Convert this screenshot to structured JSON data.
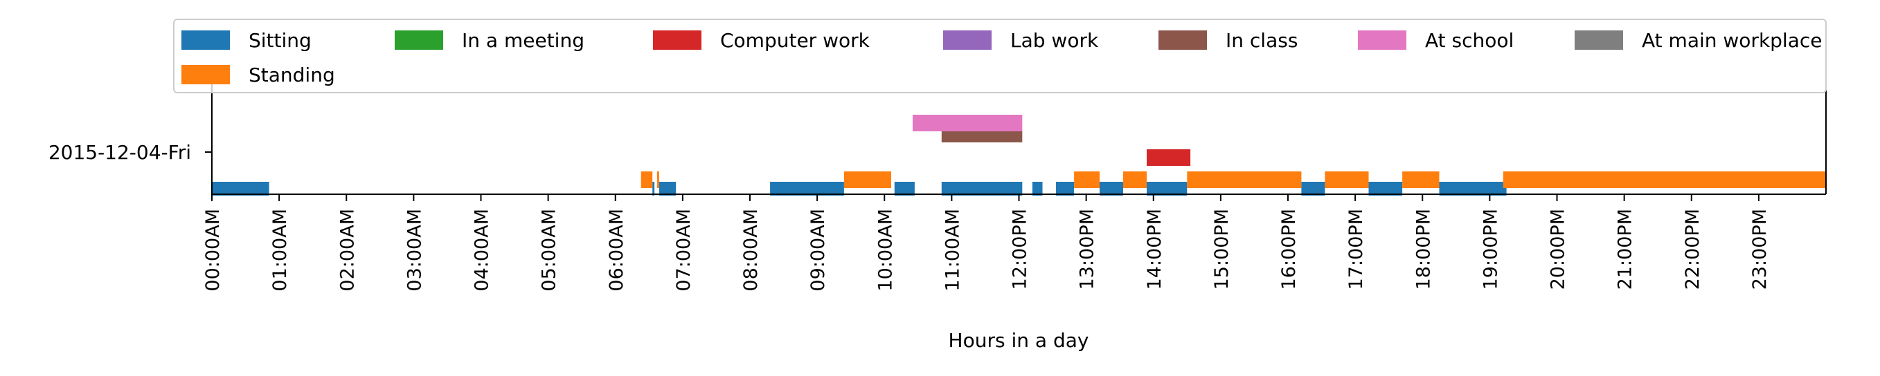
{
  "chart_data": {
    "type": "timeline",
    "title": "",
    "xlabel": "Hours in a day",
    "ylabel": "",
    "x_unit": "hours",
    "xlim": [
      0,
      24
    ],
    "y_categories": [
      "2015-12-04-Fri"
    ],
    "x_tick_labels": [
      "00:00AM",
      "01:00AM",
      "02:00AM",
      "03:00AM",
      "04:00AM",
      "05:00AM",
      "06:00AM",
      "07:00AM",
      "08:00AM",
      "09:00AM",
      "10:00AM",
      "11:00AM",
      "12:00PM",
      "13:00PM",
      "14:00PM",
      "15:00PM",
      "16:00PM",
      "17:00PM",
      "18:00PM",
      "19:00PM",
      "20:00PM",
      "21:00PM",
      "22:00PM",
      "23:00PM"
    ],
    "grid": false,
    "legend_position": "top",
    "series": [
      {
        "name": "Sitting",
        "color": "#1f77b4",
        "intervals": [
          [
            0.0,
            0.85
          ],
          [
            6.55,
            6.58
          ],
          [
            6.65,
            6.9
          ],
          [
            8.3,
            9.4
          ],
          [
            10.15,
            10.45
          ],
          [
            10.85,
            12.05
          ],
          [
            12.2,
            12.35
          ],
          [
            12.55,
            12.82
          ],
          [
            13.2,
            13.55
          ],
          [
            13.9,
            14.5
          ],
          [
            16.2,
            16.55
          ],
          [
            17.2,
            17.7
          ],
          [
            18.25,
            19.25
          ]
        ]
      },
      {
        "name": "Standing",
        "color": "#ff7f0e",
        "intervals": [
          [
            6.38,
            6.55
          ],
          [
            6.62,
            6.65
          ],
          [
            9.4,
            10.1
          ],
          [
            12.82,
            13.2
          ],
          [
            13.55,
            13.9
          ],
          [
            14.5,
            16.2
          ],
          [
            16.55,
            17.2
          ],
          [
            17.7,
            18.25
          ],
          [
            19.2,
            24.0
          ]
        ]
      },
      {
        "name": "In a meeting",
        "color": "#2ca02c",
        "intervals": []
      },
      {
        "name": "Computer work",
        "color": "#d62728",
        "intervals": [
          [
            13.9,
            14.55
          ]
        ]
      },
      {
        "name": "Lab work",
        "color": "#9467bd",
        "intervals": []
      },
      {
        "name": "In class",
        "color": "#8c564b",
        "intervals": [
          [
            10.85,
            12.05
          ]
        ]
      },
      {
        "name": "At school",
        "color": "#e377c2",
        "intervals": [
          [
            10.42,
            12.05
          ]
        ]
      },
      {
        "name": "At main workplace",
        "color": "#7f7f7f",
        "intervals": []
      }
    ]
  }
}
